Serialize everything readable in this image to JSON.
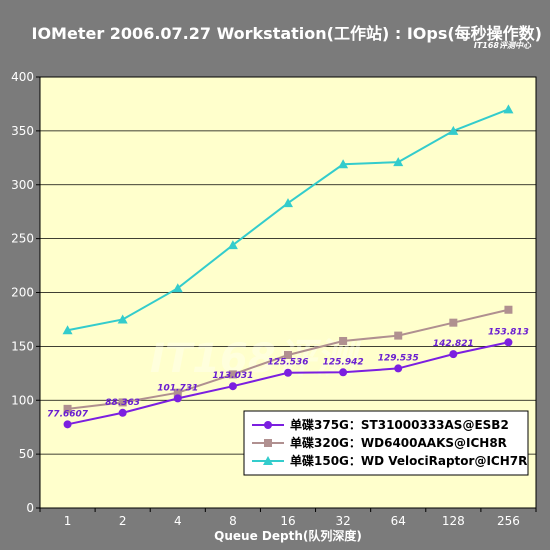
{
  "chart_data": {
    "type": "line",
    "title": "IOMeter 2006.07.27 Workstation(工作站) : IOps(每秒操作数)",
    "subtitle": "IT168评测中心",
    "watermark": "IT168评测",
    "xlabel": "Queue Depth(队列深度)",
    "ylabel": "",
    "categories": [
      "1",
      "2",
      "4",
      "8",
      "16",
      "32",
      "64",
      "128",
      "256"
    ],
    "ylim": [
      0,
      400
    ],
    "yticks": [
      "0",
      "50",
      "100",
      "150",
      "200",
      "250",
      "300",
      "350",
      "400"
    ],
    "grid": true,
    "legend_position": "bottom-right",
    "series": [
      {
        "name": "单碟375G：ST31000333AS@ESB2",
        "color": "#7b1fe0",
        "marker": "circle",
        "values": [
          77.6607,
          88.363,
          101.731,
          113.031,
          125.536,
          125.942,
          129.535,
          142.821,
          153.813
        ],
        "labels": [
          "77.6607",
          "88.363",
          "101.731",
          "113.031",
          "125.536",
          "125.942",
          "129.535",
          "142.821",
          "153.813"
        ]
      },
      {
        "name": "单碟320G：WD6400AAKS@ICH8R",
        "color": "#b09090",
        "marker": "square",
        "values": [
          92,
          98,
          107,
          124,
          142,
          155,
          160,
          172,
          184
        ]
      },
      {
        "name": "单碟150G：WD VelociRaptor@ICH7R",
        "color": "#33cccc",
        "marker": "triangle",
        "values": [
          165,
          175,
          204,
          244,
          283,
          319,
          321,
          350,
          370
        ]
      }
    ]
  },
  "colors": {
    "background": "#7b7b7b",
    "plot_area": "#ffffcc",
    "plot_border": "#000000",
    "legend_bg": "#ffffff"
  }
}
